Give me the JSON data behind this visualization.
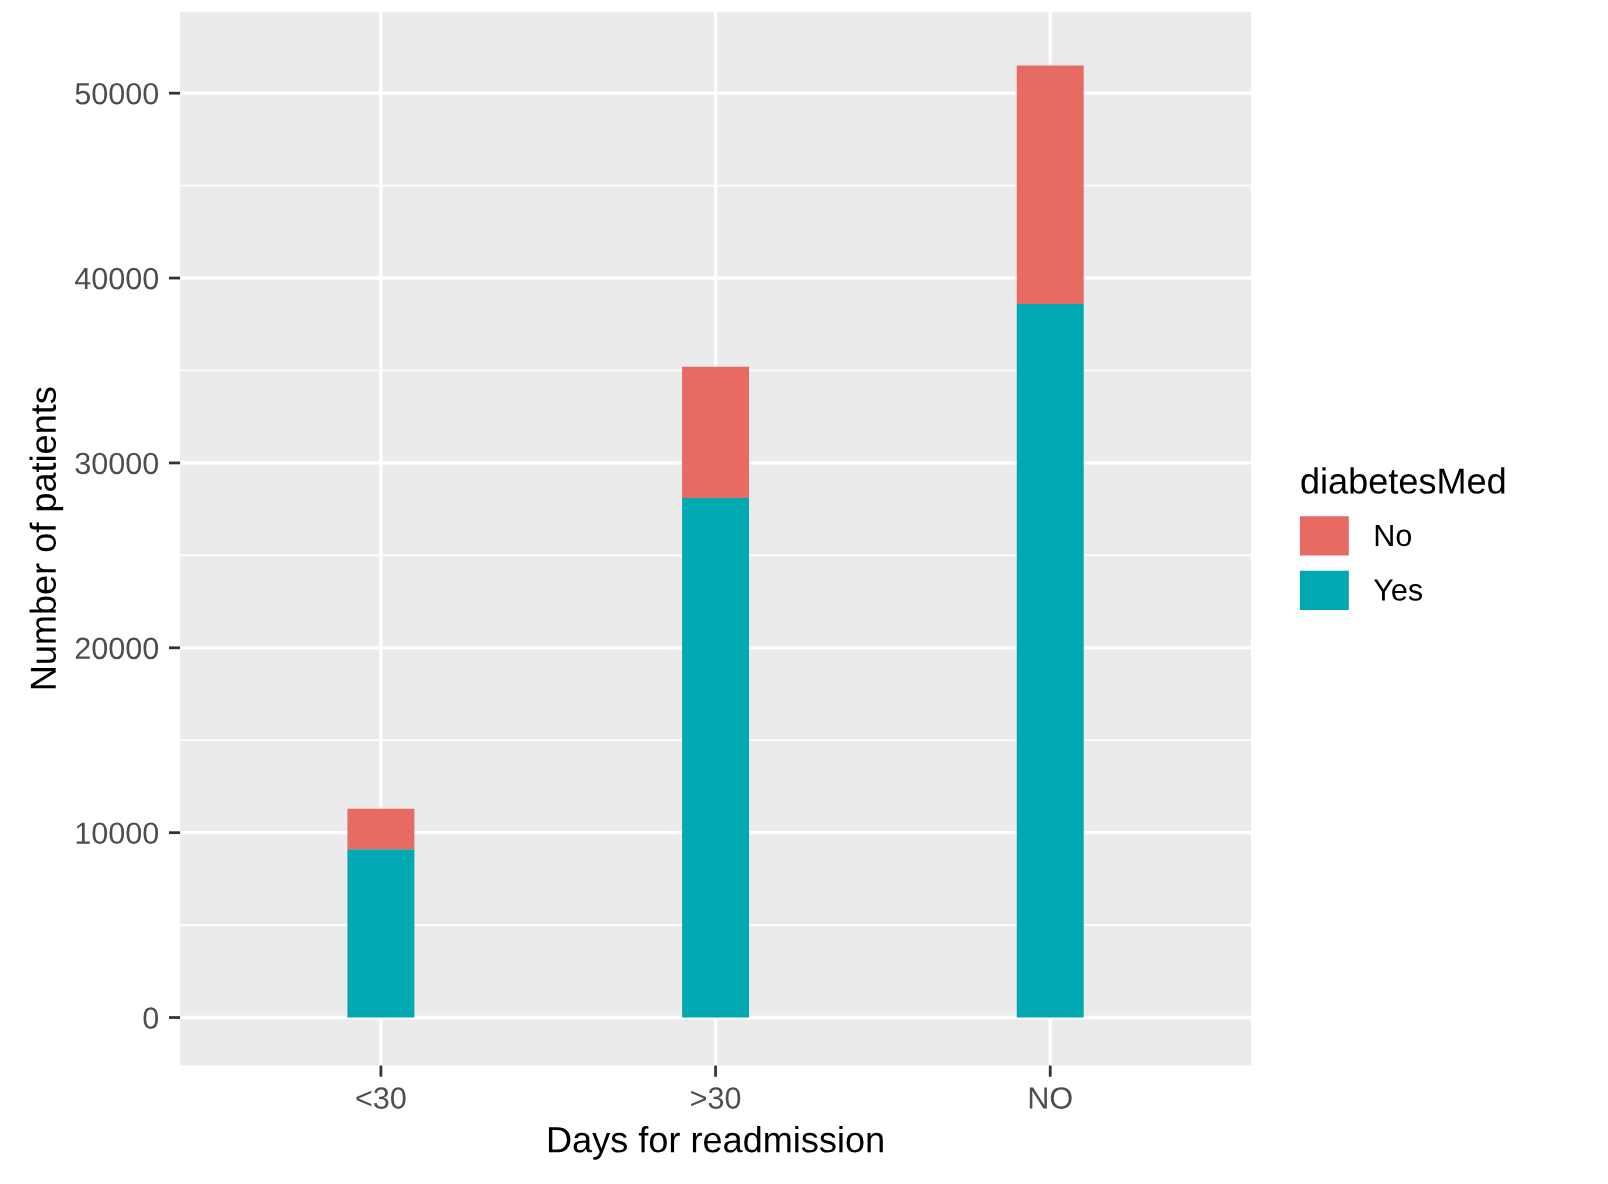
{
  "chart_data": {
    "type": "bar",
    "xlabel": "Days for readmission",
    "ylabel": "Number of patients",
    "legend_title": "diabetesMed",
    "categories": [
      "<30",
      ">30",
      "NO"
    ],
    "series": [
      {
        "name": "Yes",
        "color": "#00a9b2",
        "values": [
          9100,
          28100,
          38600
        ]
      },
      {
        "name": "No",
        "color": "#e76a63",
        "values": [
          2200,
          7100,
          12900
        ]
      }
    ],
    "stacked": true,
    "ylim": [
      -2600,
      54400
    ],
    "yticks": [
      0,
      10000,
      20000,
      30000,
      40000,
      50000
    ],
    "grid": true,
    "legend": "right"
  }
}
